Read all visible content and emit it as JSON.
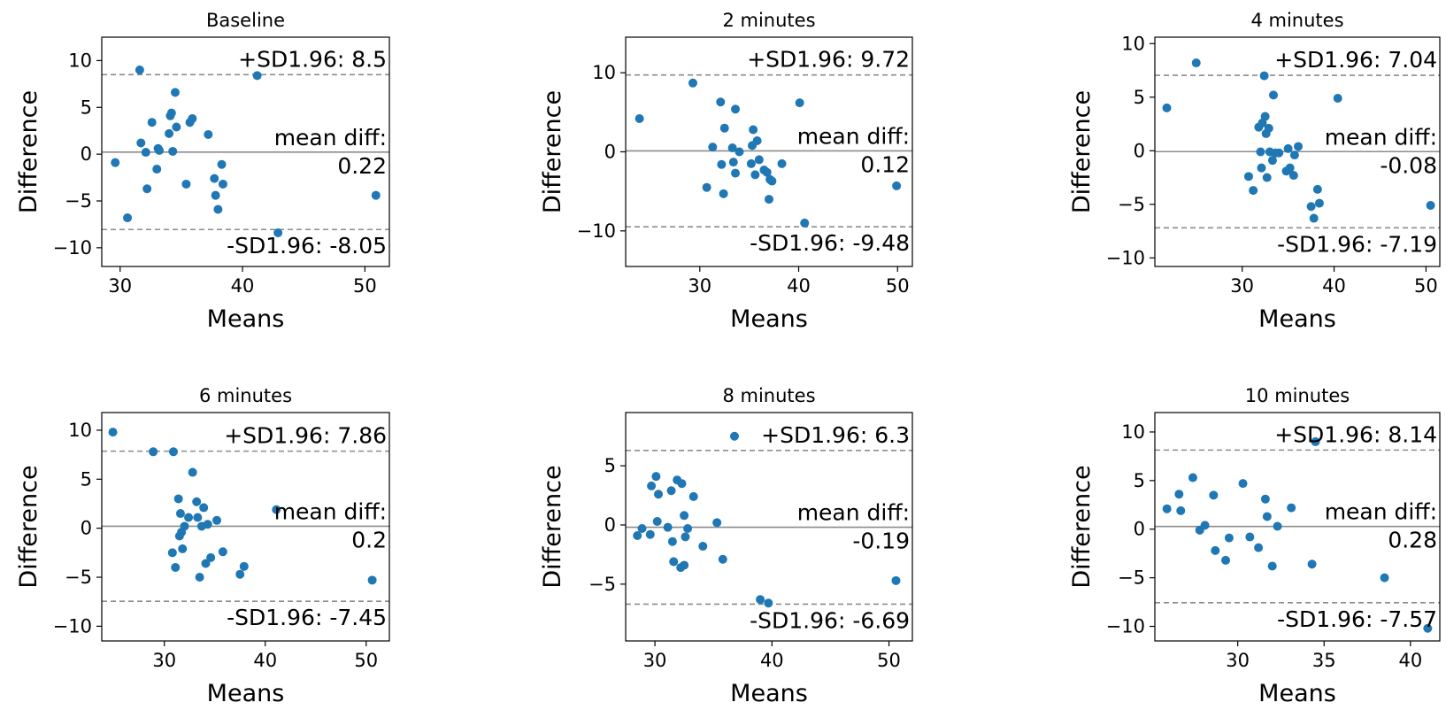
{
  "figure": {
    "point_color": "#1f77b4",
    "line_color": "#8c8c8c"
  },
  "chart_data": [
    {
      "type": "scatter",
      "title": "Baseline",
      "xlabel": "Means",
      "ylabel": "Difference",
      "xlim": [
        28.5,
        52
      ],
      "ylim": [
        -12,
        12.5
      ],
      "xticks": [
        30,
        40,
        50
      ],
      "yticks": [
        -10,
        -5,
        0,
        5,
        10
      ],
      "mean_diff": 0.22,
      "upper_loa": 8.5,
      "lower_loa": -8.05,
      "upper_label": "+SD1.96: 8.5",
      "mean_label_line1": "mean diff:",
      "mean_label_line2": "0.22",
      "lower_label": "-SD1.96: -8.05",
      "points": [
        [
          29.6,
          -0.9
        ],
        [
          30.6,
          -6.8
        ],
        [
          31.6,
          9.0
        ],
        [
          31.7,
          1.2
        ],
        [
          32.1,
          0.2
        ],
        [
          32.2,
          -3.7
        ],
        [
          32.6,
          3.4
        ],
        [
          33.0,
          -1.6
        ],
        [
          33.1,
          0.6
        ],
        [
          33.2,
          0.4
        ],
        [
          34.0,
          2.2
        ],
        [
          34.1,
          4.1
        ],
        [
          34.2,
          4.4
        ],
        [
          34.3,
          0.3
        ],
        [
          34.5,
          6.6
        ],
        [
          34.6,
          2.9
        ],
        [
          35.4,
          -3.2
        ],
        [
          35.7,
          3.4
        ],
        [
          35.9,
          3.8
        ],
        [
          37.2,
          2.1
        ],
        [
          37.7,
          -2.6
        ],
        [
          37.8,
          -4.4
        ],
        [
          38.0,
          -5.9
        ],
        [
          38.3,
          -1.1
        ],
        [
          38.4,
          -3.2
        ],
        [
          41.2,
          8.4
        ],
        [
          42.9,
          -8.4
        ],
        [
          50.9,
          -4.4
        ]
      ]
    },
    {
      "type": "scatter",
      "title": "2 minutes",
      "xlabel": "Means",
      "ylabel": "Difference",
      "xlim": [
        22.5,
        51.5
      ],
      "ylim": [
        -14.5,
        14.5
      ],
      "xticks": [
        30,
        40,
        50
      ],
      "yticks": [
        -10,
        0,
        10
      ],
      "mean_diff": 0.12,
      "upper_loa": 9.72,
      "lower_loa": -9.48,
      "upper_label": "+SD1.96: 9.72",
      "mean_label_line1": "mean diff:",
      "mean_label_line2": "0.12",
      "lower_label": "-SD1.96: -9.48",
      "points": [
        [
          23.9,
          4.2
        ],
        [
          29.3,
          8.7
        ],
        [
          30.7,
          -4.5
        ],
        [
          31.3,
          0.6
        ],
        [
          32.1,
          6.3
        ],
        [
          32.2,
          -1.6
        ],
        [
          32.4,
          -5.3
        ],
        [
          32.5,
          3.0
        ],
        [
          33.3,
          0.5
        ],
        [
          33.4,
          -1.3
        ],
        [
          33.6,
          5.4
        ],
        [
          33.6,
          -2.7
        ],
        [
          34.0,
          0.0
        ],
        [
          35.2,
          -1.5
        ],
        [
          35.3,
          0.8
        ],
        [
          35.4,
          2.8
        ],
        [
          35.6,
          -2.9
        ],
        [
          35.8,
          1.4
        ],
        [
          36.0,
          -1.0
        ],
        [
          36.5,
          -2.3
        ],
        [
          36.8,
          -2.6
        ],
        [
          37.0,
          -6.0
        ],
        [
          37.1,
          -3.5
        ],
        [
          37.3,
          -3.7
        ],
        [
          38.3,
          -1.5
        ],
        [
          40.1,
          6.2
        ],
        [
          40.6,
          -9.0
        ],
        [
          49.9,
          -4.3
        ]
      ]
    },
    {
      "type": "scatter",
      "title": "4 minutes",
      "xlabel": "Means",
      "ylabel": "Difference",
      "xlim": [
        20.5,
        51.5
      ],
      "ylim": [
        -10.8,
        10.6
      ],
      "xticks": [
        30,
        40,
        50
      ],
      "yticks": [
        -10,
        -5,
        0,
        5,
        10
      ],
      "mean_diff": -0.08,
      "upper_loa": 7.04,
      "lower_loa": -7.19,
      "upper_label": "+SD1.96: 7.04",
      "mean_label_line1": "mean diff:",
      "mean_label_line2": "-0.08",
      "lower_label": "-SD1.96: -7.19",
      "points": [
        [
          21.8,
          4.0
        ],
        [
          25.0,
          8.2
        ],
        [
          30.7,
          -2.4
        ],
        [
          31.2,
          -3.7
        ],
        [
          31.8,
          2.2
        ],
        [
          32.0,
          -0.1
        ],
        [
          32.1,
          -1.6
        ],
        [
          32.2,
          2.6
        ],
        [
          32.4,
          7.0
        ],
        [
          32.5,
          3.2
        ],
        [
          32.6,
          1.6
        ],
        [
          32.7,
          -2.5
        ],
        [
          32.9,
          2.1
        ],
        [
          33.0,
          -0.1
        ],
        [
          33.3,
          -0.9
        ],
        [
          33.4,
          5.2
        ],
        [
          33.6,
          -0.2
        ],
        [
          34.0,
          -0.2
        ],
        [
          34.8,
          -1.9
        ],
        [
          35.0,
          0.2
        ],
        [
          35.2,
          -1.6
        ],
        [
          35.6,
          -2.3
        ],
        [
          35.7,
          -0.4
        ],
        [
          36.1,
          0.4
        ],
        [
          37.5,
          -5.2
        ],
        [
          37.8,
          -6.3
        ],
        [
          38.2,
          -3.6
        ],
        [
          38.4,
          -4.9
        ],
        [
          40.4,
          4.9
        ],
        [
          50.5,
          -5.1
        ]
      ]
    },
    {
      "type": "scatter",
      "title": "6 minutes",
      "xlabel": "Means",
      "ylabel": "Difference",
      "xlim": [
        23.8,
        52.3
      ],
      "ylim": [
        -11.5,
        11.8
      ],
      "xticks": [
        30,
        40,
        50
      ],
      "yticks": [
        -10,
        -5,
        0,
        5,
        10
      ],
      "mean_diff": 0.2,
      "upper_loa": 7.86,
      "lower_loa": -7.45,
      "upper_label": "+SD1.96: 7.86",
      "mean_label_line1": "mean diff:",
      "mean_label_line2": "0.2",
      "lower_label": "-SD1.96: -7.45",
      "points": [
        [
          24.9,
          9.8
        ],
        [
          28.9,
          7.8
        ],
        [
          30.9,
          7.8
        ],
        [
          30.8,
          -2.5
        ],
        [
          31.1,
          -4.0
        ],
        [
          31.4,
          3.0
        ],
        [
          31.5,
          -0.8
        ],
        [
          31.6,
          1.5
        ],
        [
          31.7,
          -0.4
        ],
        [
          31.8,
          -2.1
        ],
        [
          32.0,
          0.2
        ],
        [
          32.4,
          1.1
        ],
        [
          32.8,
          5.7
        ],
        [
          33.2,
          2.7
        ],
        [
          33.3,
          1.1
        ],
        [
          33.5,
          -5.0
        ],
        [
          33.7,
          0.2
        ],
        [
          33.9,
          2.1
        ],
        [
          34.1,
          -3.6
        ],
        [
          34.3,
          0.4
        ],
        [
          34.6,
          -3.0
        ],
        [
          35.2,
          0.8
        ],
        [
          35.8,
          -2.4
        ],
        [
          37.5,
          -4.7
        ],
        [
          37.9,
          -3.9
        ],
        [
          41.1,
          1.9
        ],
        [
          50.6,
          -5.3
        ]
      ]
    },
    {
      "type": "scatter",
      "title": "8 minutes",
      "xlabel": "Means",
      "ylabel": "Difference",
      "xlim": [
        27.5,
        52
      ],
      "ylim": [
        -9.8,
        9.5
      ],
      "xticks": [
        30,
        40,
        50
      ],
      "yticks": [
        -5,
        0,
        5
      ],
      "mean_diff": -0.19,
      "upper_loa": 6.3,
      "lower_loa": -6.69,
      "upper_label": "+SD1.96: 6.3",
      "mean_label_line1": "mean diff:",
      "mean_label_line2": "-0.19",
      "lower_label": "-SD1.96: -6.69",
      "points": [
        [
          28.5,
          -0.9
        ],
        [
          28.9,
          -0.3
        ],
        [
          29.6,
          -0.8
        ],
        [
          29.7,
          3.3
        ],
        [
          30.1,
          4.1
        ],
        [
          30.2,
          0.3
        ],
        [
          30.3,
          2.6
        ],
        [
          31.1,
          -0.2
        ],
        [
          31.4,
          2.9
        ],
        [
          31.5,
          -1.4
        ],
        [
          31.6,
          -3.1
        ],
        [
          31.9,
          3.8
        ],
        [
          32.2,
          -3.6
        ],
        [
          32.3,
          3.5
        ],
        [
          32.5,
          0.8
        ],
        [
          32.5,
          -3.4
        ],
        [
          32.6,
          -1.0
        ],
        [
          32.8,
          -0.3
        ],
        [
          33.3,
          2.4
        ],
        [
          34.1,
          -1.8
        ],
        [
          35.3,
          0.2
        ],
        [
          35.8,
          -2.9
        ],
        [
          36.8,
          7.5
        ],
        [
          39.0,
          -6.3
        ],
        [
          39.7,
          -6.6
        ],
        [
          50.6,
          -4.7
        ]
      ]
    },
    {
      "type": "scatter",
      "title": "10 minutes",
      "xlabel": "Means",
      "ylabel": "Difference",
      "xlim": [
        25.2,
        41.7
      ],
      "ylim": [
        -11.5,
        12
      ],
      "xticks": [
        30,
        35,
        40
      ],
      "yticks": [
        -10,
        -5,
        0,
        5,
        10
      ],
      "mean_diff": 0.28,
      "upper_loa": 8.14,
      "lower_loa": -7.57,
      "upper_label": "+SD1.96: 8.14",
      "mean_label_line1": "mean diff:",
      "mean_label_line2": "0.28",
      "lower_label": "-SD1.96: -7.57",
      "points": [
        [
          25.9,
          2.1
        ],
        [
          26.6,
          3.6
        ],
        [
          26.7,
          1.9
        ],
        [
          27.4,
          5.3
        ],
        [
          27.8,
          -0.1
        ],
        [
          28.1,
          0.4
        ],
        [
          28.6,
          3.5
        ],
        [
          28.7,
          -2.2
        ],
        [
          29.3,
          -3.2
        ],
        [
          29.5,
          -0.9
        ],
        [
          30.3,
          4.7
        ],
        [
          30.7,
          -0.8
        ],
        [
          31.2,
          -1.9
        ],
        [
          31.6,
          3.1
        ],
        [
          31.7,
          1.3
        ],
        [
          32.0,
          -3.8
        ],
        [
          32.3,
          0.3
        ],
        [
          33.1,
          2.2
        ],
        [
          34.3,
          -3.6
        ],
        [
          34.5,
          9.0
        ],
        [
          38.5,
          -5.0
        ],
        [
          41.0,
          -10.2
        ]
      ]
    }
  ]
}
